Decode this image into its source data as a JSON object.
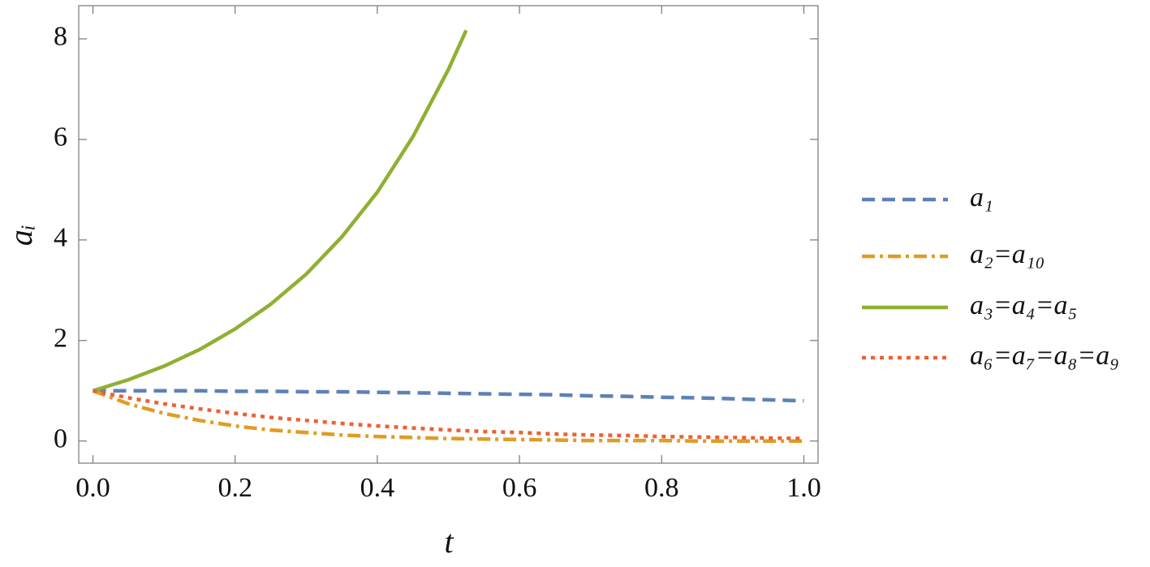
{
  "chart_data": {
    "type": "line",
    "x_label": "t",
    "y_label": "aᵢ",
    "xlim": [
      -0.02,
      1.02
    ],
    "ylim": [
      -0.44,
      8.66
    ],
    "xticks": [
      {
        "value": 0,
        "label": "0.0"
      },
      0.2,
      0.4,
      0.6,
      0.8,
      {
        "value": 1,
        "label": "1.0"
      }
    ],
    "yticks": [
      0,
      2,
      4,
      6,
      8
    ],
    "legend": "right",
    "series": [
      {
        "name": "a₁",
        "color": "#5e81b5",
        "style": "dashed",
        "x": [
          0,
          0.05,
          0.1,
          0.15,
          0.2,
          0.25,
          0.3,
          0.35,
          0.4,
          0.45,
          0.5,
          0.55,
          0.6,
          0.65,
          0.7,
          0.75,
          0.8,
          0.85,
          0.9,
          0.95,
          1
        ],
        "values": [
          1,
          1,
          1,
          1,
          0.99,
          0.99,
          0.98,
          0.98,
          0.97,
          0.96,
          0.95,
          0.94,
          0.93,
          0.92,
          0.9,
          0.89,
          0.87,
          0.86,
          0.84,
          0.82,
          0.8
        ]
      },
      {
        "name": "a₂=a₁₀",
        "color": "#e19c24",
        "style": "dashdot",
        "x": [
          0,
          0.05,
          0.1,
          0.15,
          0.2,
          0.25,
          0.3,
          0.35,
          0.4,
          0.45,
          0.5,
          0.55,
          0.6,
          0.65,
          0.7,
          0.75,
          0.8,
          0.85,
          0.9,
          0.95,
          1
        ],
        "values": [
          1,
          0.74,
          0.55,
          0.41,
          0.3,
          0.22,
          0.17,
          0.12,
          0.09,
          0.07,
          0.05,
          0.04,
          0.03,
          0.02,
          0.01,
          0.01,
          0.01,
          0,
          0,
          0,
          0
        ]
      },
      {
        "name": "a₃=a₄=a₅",
        "color": "#8fb032",
        "style": "solid",
        "x": [
          0,
          0.05,
          0.1,
          0.15,
          0.2,
          0.25,
          0.3,
          0.35,
          0.4,
          0.45,
          0.5,
          0.525
        ],
        "values": [
          1,
          1.22,
          1.49,
          1.82,
          2.23,
          2.72,
          3.32,
          4.06,
          4.95,
          6.05,
          7.39,
          8.17
        ]
      },
      {
        "name": "a₆=a₇=a₈=a₉",
        "color": "#eb6235",
        "style": "dotted",
        "x": [
          0,
          0.05,
          0.1,
          0.15,
          0.2,
          0.25,
          0.3,
          0.35,
          0.4,
          0.45,
          0.5,
          0.55,
          0.6,
          0.65,
          0.7,
          0.75,
          0.8,
          0.85,
          0.9,
          0.95,
          1
        ],
        "values": [
          1,
          0.86,
          0.74,
          0.64,
          0.55,
          0.47,
          0.41,
          0.35,
          0.3,
          0.26,
          0.22,
          0.19,
          0.17,
          0.14,
          0.12,
          0.11,
          0.09,
          0.08,
          0.07,
          0.06,
          0.05
        ]
      }
    ]
  }
}
